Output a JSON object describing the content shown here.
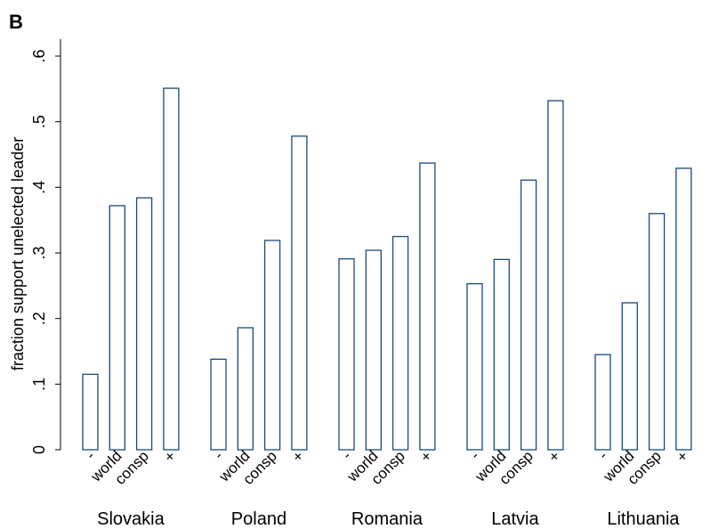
{
  "panel_label": "B",
  "chart_data": {
    "type": "bar",
    "ylabel": "fraction support unelected leader",
    "ylim": [
      0,
      0.6
    ],
    "yticks": [
      {
        "value": 0,
        "label": "0"
      },
      {
        "value": 0.1,
        "label": ".1"
      },
      {
        "value": 0.2,
        "label": ".2"
      },
      {
        "value": 0.3,
        "label": ".3"
      },
      {
        "value": 0.4,
        "label": ".4"
      },
      {
        "value": 0.5,
        "label": ".5"
      },
      {
        "value": 0.6,
        "label": ".6"
      }
    ],
    "categories": [
      "-",
      "world",
      "consp",
      "+"
    ],
    "groups": [
      {
        "name": "Slovakia",
        "values": [
          0.115,
          0.372,
          0.384,
          0.551
        ]
      },
      {
        "name": "Poland",
        "values": [
          0.138,
          0.186,
          0.319,
          0.478
        ]
      },
      {
        "name": "Romania",
        "values": [
          0.291,
          0.304,
          0.325,
          0.437
        ]
      },
      {
        "name": "Latvia",
        "values": [
          0.253,
          0.29,
          0.411,
          0.532
        ]
      },
      {
        "name": "Lithuania",
        "values": [
          0.145,
          0.224,
          0.36,
          0.429
        ]
      }
    ],
    "bar_color": "#1a4a7a",
    "grid": false,
    "legend": "none"
  }
}
